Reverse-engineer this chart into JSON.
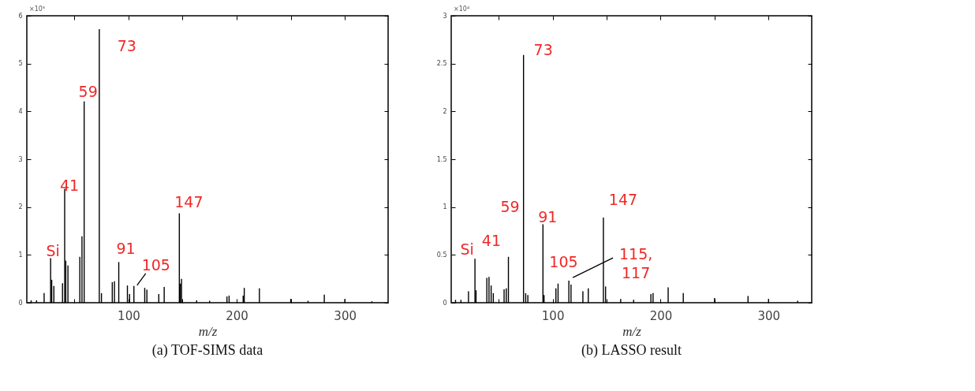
{
  "chart_data": [
    {
      "type": "bar",
      "title": "(a) TOF-SIMS data",
      "xlabel": "m/z",
      "color": "#000000",
      "x": [
        10,
        15,
        22,
        28,
        29,
        31,
        39,
        41,
        42,
        44,
        55,
        57,
        59,
        73,
        75,
        85,
        87,
        91,
        99,
        101,
        105,
        115,
        117,
        128,
        133,
        147,
        148,
        149,
        163,
        175,
        191,
        193,
        206,
        207,
        221,
        250,
        266,
        281,
        300,
        325
      ],
      "values": [
        0.05,
        0.05,
        0.2,
        0.93,
        0.48,
        0.35,
        0.41,
        2.38,
        0.88,
        0.78,
        0.96,
        1.39,
        4.21,
        5.72,
        0.2,
        0.43,
        0.45,
        0.85,
        0.36,
        0.18,
        0.35,
        0.31,
        0.27,
        0.18,
        0.33,
        1.87,
        0.4,
        0.5,
        0.05,
        0.04,
        0.13,
        0.15,
        0.15,
        0.31,
        0.3,
        0.08,
        0.04,
        0.17,
        0.08,
        0.03
      ],
      "xlim": [
        6,
        340
      ],
      "xticks": [
        {
          "value": 50,
          "label": null
        },
        100,
        {
          "value": 150,
          "label": null
        },
        200,
        {
          "value": 250,
          "label": null
        },
        300
      ],
      "ylim": [
        0,
        6
      ],
      "yticks": [
        0,
        1,
        2,
        3,
        4,
        5,
        6
      ],
      "annotations": [
        "×10⁵",
        {
          "text": "73",
          "x": 73,
          "y": 5.72
        },
        {
          "text": "59",
          "x": 59,
          "y": 4.21
        },
        {
          "text": "41",
          "x": 41,
          "y": 2.38
        },
        {
          "text": "Si",
          "x": 28,
          "y": 0.93
        },
        {
          "text": "91",
          "x": 91,
          "y": 0.85
        },
        {
          "text": "105",
          "x": 105,
          "y": 0.35
        },
        {
          "text": "147",
          "x": 147,
          "y": 1.87
        }
      ]
    },
    {
      "type": "bar",
      "title": "(b) LASSO result",
      "xlabel": "m/z",
      "color": "#000000",
      "x": [
        10,
        15,
        22,
        28,
        29,
        39,
        41,
        43,
        45,
        55,
        57,
        59,
        73,
        75,
        77,
        91,
        92,
        103,
        105,
        115,
        117,
        128,
        133,
        147,
        149,
        163,
        175,
        191,
        193,
        207,
        221,
        250,
        281,
        300,
        327
      ],
      "values": [
        0.03,
        0.03,
        0.12,
        0.46,
        0.13,
        0.26,
        0.27,
        0.18,
        0.1,
        0.14,
        0.15,
        0.48,
        2.59,
        0.1,
        0.08,
        0.82,
        0.08,
        0.15,
        0.2,
        0.23,
        0.19,
        0.12,
        0.15,
        0.89,
        0.17,
        0.04,
        0.03,
        0.09,
        0.1,
        0.16,
        0.1,
        0.05,
        0.07,
        0.04,
        0.02
      ],
      "xlim": [
        6,
        340
      ],
      "xticks": [
        {
          "value": 50,
          "label": null
        },
        100,
        {
          "value": 150,
          "label": null
        },
        200,
        {
          "value": 250,
          "label": null
        },
        300
      ],
      "ylim": [
        0,
        3
      ],
      "yticks": [
        0,
        0.5,
        1,
        1.5,
        2,
        2.5,
        3
      ],
      "annotations": [
        "×10⁴",
        {
          "text": "73",
          "x": 73,
          "y": 2.59
        },
        {
          "text": "59",
          "x": 59,
          "y": 0.48
        },
        {
          "text": "91",
          "x": 91,
          "y": 0.82
        },
        {
          "text": "Si",
          "x": 28,
          "y": 0.46
        },
        {
          "text": "41",
          "x": 41,
          "y": 0.27
        },
        {
          "text": "105",
          "x": 105,
          "y": 0.2
        },
        {
          "text": "147",
          "x": 147,
          "y": 0.89
        },
        {
          "text": "115,\n117",
          "x": 115,
          "y": 0.23
        }
      ]
    }
  ]
}
